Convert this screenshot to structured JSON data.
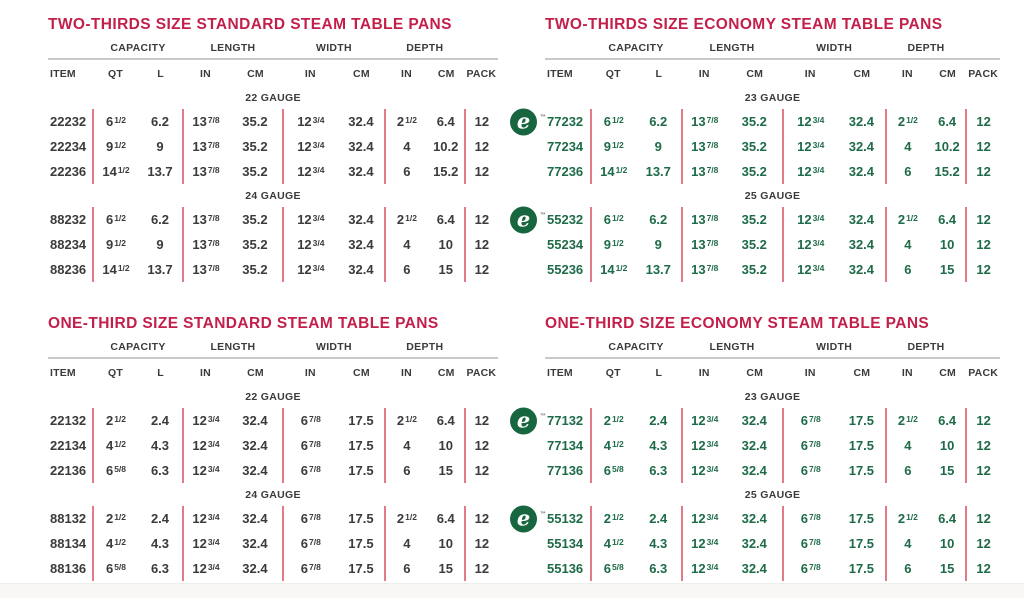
{
  "colors": {
    "accent-red": "#c31f4a",
    "dark": "#3b3b3b",
    "green": "#1e6b48",
    "pink": "#e27b85",
    "line-gray": "#c9c9c9",
    "logo-green": "#17663f",
    "footer-bar": "#f8f7f5"
  },
  "logo": {
    "letter": "e",
    "tm": "™"
  },
  "shared": {
    "groups": [
      "CAPACITY",
      "LENGTH",
      "WIDTH",
      "DEPTH"
    ],
    "headers": [
      "ITEM",
      "QT",
      "L",
      "IN",
      "CM",
      "IN",
      "CM",
      "IN",
      "CM",
      "PACK"
    ]
  },
  "tables": [
    {
      "title": "TWO-THIRDS SIZE STANDARD STEAM TABLE PANS",
      "variant": "standard",
      "sections": [
        {
          "gauge": "22 GAUGE",
          "rows": [
            {
              "logo": false,
              "cells": [
                "22232",
                "6 1/2",
                "6.2",
                "13 7/8",
                "35.2",
                "12 3/4",
                "32.4",
                "2 1/2",
                "6.4",
                "12"
              ]
            },
            {
              "logo": false,
              "cells": [
                "22234",
                "9 1/2",
                "9",
                "13 7/8",
                "35.2",
                "12 3/4",
                "32.4",
                "4",
                "10.2",
                "12"
              ]
            },
            {
              "logo": false,
              "cells": [
                "22236",
                "14 1/2",
                "13.7",
                "13 7/8",
                "35.2",
                "12 3/4",
                "32.4",
                "6",
                "15.2",
                "12"
              ]
            }
          ]
        },
        {
          "gauge": "24 GAUGE",
          "rows": [
            {
              "logo": false,
              "cells": [
                "88232",
                "6 1/2",
                "6.2",
                "13 7/8",
                "35.2",
                "12 3/4",
                "32.4",
                "2 1/2",
                "6.4",
                "12"
              ]
            },
            {
              "logo": false,
              "cells": [
                "88234",
                "9 1/2",
                "9",
                "13 7/8",
                "35.2",
                "12 3/4",
                "32.4",
                "4",
                "10",
                "12"
              ]
            },
            {
              "logo": false,
              "cells": [
                "88236",
                "14 1/2",
                "13.7",
                "13 7/8",
                "35.2",
                "12 3/4",
                "32.4",
                "6",
                "15",
                "12"
              ]
            }
          ]
        }
      ]
    },
    {
      "title": "TWO-THIRDS SIZE ECONOMY STEAM TABLE PANS",
      "variant": "economy",
      "sections": [
        {
          "gauge": "23 GAUGE",
          "rows": [
            {
              "logo": true,
              "cells": [
                "77232",
                "6 1/2",
                "6.2",
                "13 7/8",
                "35.2",
                "12 3/4",
                "32.4",
                "2 1/2",
                "6.4",
                "12"
              ]
            },
            {
              "logo": false,
              "cells": [
                "77234",
                "9 1/2",
                "9",
                "13 7/8",
                "35.2",
                "12 3/4",
                "32.4",
                "4",
                "10.2",
                "12"
              ]
            },
            {
              "logo": false,
              "cells": [
                "77236",
                "14 1/2",
                "13.7",
                "13 7/8",
                "35.2",
                "12 3/4",
                "32.4",
                "6",
                "15.2",
                "12"
              ]
            }
          ]
        },
        {
          "gauge": "25 GAUGE",
          "rows": [
            {
              "logo": true,
              "cells": [
                "55232",
                "6 1/2",
                "6.2",
                "13 7/8",
                "35.2",
                "12 3/4",
                "32.4",
                "2 1/2",
                "6.4",
                "12"
              ]
            },
            {
              "logo": false,
              "cells": [
                "55234",
                "9 1/2",
                "9",
                "13 7/8",
                "35.2",
                "12 3/4",
                "32.4",
                "4",
                "10",
                "12"
              ]
            },
            {
              "logo": false,
              "cells": [
                "55236",
                "14 1/2",
                "13.7",
                "13 7/8",
                "35.2",
                "12 3/4",
                "32.4",
                "6",
                "15",
                "12"
              ]
            }
          ]
        }
      ]
    },
    {
      "title": "ONE-THIRD SIZE STANDARD STEAM TABLE PANS",
      "variant": "standard",
      "sections": [
        {
          "gauge": "22 GAUGE",
          "rows": [
            {
              "logo": false,
              "cells": [
                "22132",
                "2 1/2",
                "2.4",
                "12 3/4",
                "32.4",
                "6 7/8",
                "17.5",
                "2 1/2",
                "6.4",
                "12"
              ]
            },
            {
              "logo": false,
              "cells": [
                "22134",
                "4 1/2",
                "4.3",
                "12 3/4",
                "32.4",
                "6 7/8",
                "17.5",
                "4",
                "10",
                "12"
              ]
            },
            {
              "logo": false,
              "cells": [
                "22136",
                "6 5/8",
                "6.3",
                "12 3/4",
                "32.4",
                "6 7/8",
                "17.5",
                "6",
                "15",
                "12"
              ]
            }
          ]
        },
        {
          "gauge": "24 GAUGE",
          "rows": [
            {
              "logo": false,
              "cells": [
                "88132",
                "2 1/2",
                "2.4",
                "12 3/4",
                "32.4",
                "6 7/8",
                "17.5",
                "2 1/2",
                "6.4",
                "12"
              ]
            },
            {
              "logo": false,
              "cells": [
                "88134",
                "4 1/2",
                "4.3",
                "12 3/4",
                "32.4",
                "6 7/8",
                "17.5",
                "4",
                "10",
                "12"
              ]
            },
            {
              "logo": false,
              "cells": [
                "88136",
                "6 5/8",
                "6.3",
                "12 3/4",
                "32.4",
                "6 7/8",
                "17.5",
                "6",
                "15",
                "12"
              ]
            }
          ]
        }
      ]
    },
    {
      "title": "ONE-THIRD SIZE ECONOMY STEAM TABLE PANS",
      "variant": "economy",
      "sections": [
        {
          "gauge": "23 GAUGE",
          "rows": [
            {
              "logo": true,
              "cells": [
                "77132",
                "2 1/2",
                "2.4",
                "12 3/4",
                "32.4",
                "6 7/8",
                "17.5",
                "2 1/2",
                "6.4",
                "12"
              ]
            },
            {
              "logo": false,
              "cells": [
                "77134",
                "4 1/2",
                "4.3",
                "12 3/4",
                "32.4",
                "6 7/8",
                "17.5",
                "4",
                "10",
                "12"
              ]
            },
            {
              "logo": false,
              "cells": [
                "77136",
                "6 5/8",
                "6.3",
                "12 3/4",
                "32.4",
                "6 7/8",
                "17.5",
                "6",
                "15",
                "12"
              ]
            }
          ]
        },
        {
          "gauge": "25 GAUGE",
          "rows": [
            {
              "logo": true,
              "cells": [
                "55132",
                "2 1/2",
                "2.4",
                "12 3/4",
                "32.4",
                "6 7/8",
                "17.5",
                "2 1/2",
                "6.4",
                "12"
              ]
            },
            {
              "logo": false,
              "cells": [
                "55134",
                "4 1/2",
                "4.3",
                "12 3/4",
                "32.4",
                "6 7/8",
                "17.5",
                "4",
                "10",
                "12"
              ]
            },
            {
              "logo": false,
              "cells": [
                "55136",
                "6 5/8",
                "6.3",
                "12 3/4",
                "32.4",
                "6 7/8",
                "17.5",
                "6",
                "15",
                "12"
              ]
            }
          ]
        }
      ]
    }
  ]
}
